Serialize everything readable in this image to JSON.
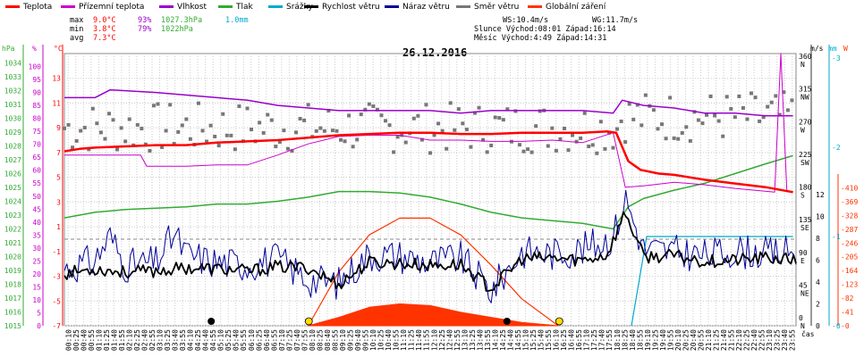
{
  "legend": [
    {
      "name": "Teplota",
      "color": "#ff0000"
    },
    {
      "name": "Přízemní teplota",
      "color": "#cc00cc"
    },
    {
      "name": "Vlhkost",
      "color": "#9900cc"
    },
    {
      "name": "Tlak",
      "color": "#33aa33"
    },
    {
      "name": "Srážky",
      "color": "#00aacc"
    },
    {
      "name": "Rychlost větru",
      "color": "#000000"
    },
    {
      "name": "Náraz větru",
      "color": "#000099"
    },
    {
      "name": "Směr větru",
      "color": "#777777"
    },
    {
      "name": "Globální záření",
      "color": "#ff3300"
    }
  ],
  "stats": {
    "max": {
      "label": "max",
      "temp": "9.0°C",
      "hum": "93%",
      "press": "1027.3hPa",
      "rain": "1.0mm"
    },
    "min": {
      "label": "min",
      "temp": "3.8°C",
      "hum": "79%",
      "press": "1022hPa"
    },
    "avg": {
      "label": "avg",
      "temp": "7.3°C"
    }
  },
  "astro": {
    "ws": "WS:10.4m/s",
    "wg": "WG:11.7m/s",
    "sun": "Slunce Východ:08:01  Západ:16:14",
    "moon": "Měsíc  Východ:4:49   Západ:14:31"
  },
  "chart_data": {
    "type": "line",
    "title": "26.12.2016",
    "xlabel": "čas",
    "x_ticks": [
      "00:10",
      "00:25",
      "00:40",
      "00:55",
      "01:10",
      "01:25",
      "01:40",
      "01:55",
      "02:10",
      "02:25",
      "02:40",
      "02:55",
      "03:10",
      "03:25",
      "03:40",
      "03:55",
      "04:10",
      "04:25",
      "04:40",
      "04:55",
      "05:10",
      "05:25",
      "05:40",
      "05:55",
      "06:10",
      "06:25",
      "06:40",
      "06:55",
      "07:10",
      "07:25",
      "07:40",
      "07:55",
      "08:10",
      "08:25",
      "08:40",
      "08:55",
      "09:10",
      "09:25",
      "09:40",
      "09:55",
      "10:10",
      "10:25",
      "10:40",
      "10:55",
      "11:10",
      "11:25",
      "11:40",
      "11:55",
      "12:10",
      "12:25",
      "12:40",
      "12:55",
      "13:10",
      "13:25",
      "13:40",
      "13:55",
      "14:10",
      "14:25",
      "14:40",
      "14:55",
      "15:10",
      "15:25",
      "15:40",
      "15:55",
      "16:10",
      "16:25",
      "16:40",
      "16:55",
      "17:10",
      "17:25",
      "17:40",
      "17:55",
      "18:10",
      "18:25",
      "18:40",
      "18:55",
      "19:10",
      "19:25",
      "19:40",
      "19:55",
      "20:10",
      "20:25",
      "20:40",
      "20:55",
      "21:10",
      "21:25",
      "21:40",
      "21:55",
      "22:10",
      "22:25",
      "22:40",
      "22:55",
      "23:10",
      "23:25",
      "23:40",
      "23:55"
    ],
    "axes": {
      "pressure": {
        "unit": "hPa",
        "range": [
          1015,
          1035
        ],
        "ticks": [
          1015,
          1016,
          1017,
          1018,
          1019,
          1020,
          1021,
          1022,
          1023,
          1024,
          1025,
          1026,
          1027,
          1028,
          1029,
          1030,
          1031,
          1032,
          1033,
          1034
        ]
      },
      "humidity": {
        "unit": "%",
        "range": [
          0,
          105
        ],
        "ticks": [
          0,
          5,
          10,
          15,
          20,
          25,
          30,
          35,
          40,
          45,
          50,
          55,
          60,
          65,
          70,
          75,
          80,
          85,
          90,
          95,
          100
        ]
      },
      "temperature": {
        "unit": "°C",
        "range": [
          -7,
          15
        ],
        "ticks": [
          -7,
          -5,
          -3,
          -1,
          1,
          3,
          5,
          7,
          9,
          11,
          13
        ]
      },
      "wind_dir": {
        "ticks": [
          {
            "v": 0,
            "l": "0\nN"
          },
          {
            "v": 45,
            "l": "45\nNE"
          },
          {
            "v": 90,
            "l": "90\nE"
          },
          {
            "v": 135,
            "l": "135\nSE"
          },
          {
            "v": 180,
            "l": "180\nS"
          },
          {
            "v": 225,
            "l": "225\nSW"
          },
          {
            "v": 270,
            "l": "270\nW"
          },
          {
            "v": 315,
            "l": "315\nNW"
          },
          {
            "v": 360,
            "l": "360\nN"
          }
        ]
      },
      "wind_speed": {
        "unit": "m/s",
        "range": [
          0,
          12
        ],
        "ticks": [
          0,
          2,
          4,
          6,
          8,
          10,
          12
        ]
      },
      "rain": {
        "unit": "mm",
        "range": [
          0,
          3
        ],
        "ticks": [
          0,
          1,
          2,
          3
        ]
      },
      "radiation": {
        "unit": "W",
        "range": [
          0,
          451
        ],
        "ticks": [
          0,
          41,
          82,
          123,
          164,
          205,
          246,
          287,
          328,
          369,
          410
        ]
      }
    },
    "series": {
      "temperature": [
        [
          0,
          7.1
        ],
        [
          0.5,
          7.3
        ],
        [
          1,
          7.4
        ],
        [
          2,
          7.5
        ],
        [
          3,
          7.6
        ],
        [
          4,
          7.6
        ],
        [
          5,
          7.8
        ],
        [
          6,
          7.9
        ],
        [
          7,
          8.0
        ],
        [
          8,
          8.2
        ],
        [
          9,
          8.4
        ],
        [
          10,
          8.5
        ],
        [
          11,
          8.6
        ],
        [
          12,
          8.6
        ],
        [
          13,
          8.5
        ],
        [
          14,
          8.5
        ],
        [
          15,
          8.6
        ],
        [
          16,
          8.6
        ],
        [
          17,
          8.6
        ],
        [
          17.8,
          8.7
        ],
        [
          18.1,
          8.6
        ],
        [
          18.5,
          6.3
        ],
        [
          18.9,
          5.6
        ],
        [
          19.5,
          5.3
        ],
        [
          20,
          5.2
        ],
        [
          21,
          4.8
        ],
        [
          22,
          4.5
        ],
        [
          23,
          4.2
        ],
        [
          23.9,
          3.8
        ]
      ],
      "ground_temperature": [
        [
          0,
          6.8
        ],
        [
          2.5,
          6.8
        ],
        [
          2.7,
          5.9
        ],
        [
          4,
          5.9
        ],
        [
          5,
          6.0
        ],
        [
          6,
          6.0
        ],
        [
          7,
          6.8
        ],
        [
          8,
          7.7
        ],
        [
          9,
          8.3
        ],
        [
          10,
          8.4
        ],
        [
          11,
          8.4
        ],
        [
          12,
          8.0
        ],
        [
          13,
          8.0
        ],
        [
          14,
          7.9
        ],
        [
          15,
          7.9
        ],
        [
          16,
          8.0
        ],
        [
          17,
          7.8
        ],
        [
          18,
          8.6
        ],
        [
          18.4,
          4.2
        ],
        [
          19,
          4.3
        ],
        [
          20,
          4.6
        ],
        [
          21,
          4.4
        ],
        [
          22,
          4.1
        ],
        [
          23.3,
          3.8
        ],
        [
          23.5,
          15.0
        ],
        [
          23.7,
          3.8
        ]
      ],
      "humidity": [
        [
          0,
          88
        ],
        [
          1,
          88
        ],
        [
          1.5,
          91
        ],
        [
          3,
          90
        ],
        [
          4,
          89
        ],
        [
          5,
          88
        ],
        [
          6,
          87
        ],
        [
          7,
          85
        ],
        [
          8,
          84
        ],
        [
          9,
          83
        ],
        [
          10,
          83
        ],
        [
          11,
          83
        ],
        [
          12,
          83
        ],
        [
          13,
          82
        ],
        [
          14,
          83
        ],
        [
          15,
          83
        ],
        [
          16,
          83
        ],
        [
          17,
          83
        ],
        [
          18,
          82
        ],
        [
          18.3,
          87
        ],
        [
          19,
          85
        ],
        [
          20,
          84
        ],
        [
          21,
          82
        ],
        [
          22,
          82
        ],
        [
          23,
          81
        ],
        [
          23.9,
          81
        ]
      ],
      "pressure": [
        [
          0,
          1022.8
        ],
        [
          1,
          1023.2
        ],
        [
          2,
          1023.4
        ],
        [
          3,
          1023.5
        ],
        [
          4,
          1023.6
        ],
        [
          5,
          1023.8
        ],
        [
          6,
          1023.8
        ],
        [
          7,
          1024.0
        ],
        [
          8,
          1024.3
        ],
        [
          9,
          1024.7
        ],
        [
          10,
          1024.7
        ],
        [
          11,
          1024.6
        ],
        [
          12,
          1024.3
        ],
        [
          13,
          1023.8
        ],
        [
          14,
          1023.2
        ],
        [
          15,
          1022.8
        ],
        [
          16,
          1022.6
        ],
        [
          17,
          1022.4
        ],
        [
          18,
          1022.0
        ],
        [
          18.5,
          1023.6
        ],
        [
          19,
          1024.2
        ],
        [
          20,
          1024.8
        ],
        [
          21,
          1025.3
        ],
        [
          22,
          1026.0
        ],
        [
          23,
          1026.7
        ],
        [
          23.9,
          1027.3
        ]
      ],
      "rain": [
        [
          18.6,
          0
        ],
        [
          19.1,
          1.0
        ],
        [
          23.9,
          1.0
        ]
      ],
      "wind_speed": [
        [
          0,
          4.8
        ],
        [
          1,
          5.2
        ],
        [
          2,
          4.9
        ],
        [
          3,
          5.0
        ],
        [
          4,
          5.3
        ],
        [
          5,
          5.2
        ],
        [
          6,
          5.0
        ],
        [
          7,
          5.4
        ],
        [
          8,
          5.3
        ],
        [
          9,
          3.8
        ],
        [
          10,
          5.8
        ],
        [
          11,
          5.7
        ],
        [
          12,
          5.5
        ],
        [
          13,
          5.6
        ],
        [
          14,
          3.4
        ],
        [
          15,
          6.1
        ],
        [
          16,
          6.2
        ],
        [
          17,
          6.0
        ],
        [
          17.8,
          6.5
        ],
        [
          18.4,
          10.4
        ],
        [
          19,
          6.3
        ],
        [
          20,
          6.4
        ],
        [
          21,
          5.9
        ],
        [
          22,
          6.0
        ],
        [
          23,
          6.2
        ],
        [
          23.9,
          6.0
        ]
      ],
      "wind_gust": [
        [
          0,
          5.2
        ],
        [
          1,
          6.0
        ],
        [
          1.5,
          8.2
        ],
        [
          2,
          5.5
        ],
        [
          3,
          5.8
        ],
        [
          3.6,
          8.4
        ],
        [
          4,
          6.5
        ],
        [
          5,
          5.8
        ],
        [
          6,
          5.6
        ],
        [
          7,
          6.1
        ],
        [
          8,
          4.2
        ],
        [
          9,
          3.9
        ],
        [
          10,
          6.5
        ],
        [
          11,
          6.4
        ],
        [
          12,
          5.8
        ],
        [
          13,
          6.2
        ],
        [
          14,
          3.2
        ],
        [
          15,
          6.8
        ],
        [
          16,
          6.6
        ],
        [
          17,
          7.0
        ],
        [
          18,
          8.1
        ],
        [
          18.4,
          11.7
        ],
        [
          19,
          7.0
        ],
        [
          20,
          6.8
        ],
        [
          21,
          6.4
        ],
        [
          22,
          6.9
        ],
        [
          23,
          6.6
        ],
        [
          23.9,
          6.8
        ]
      ],
      "radiation": [
        [
          8.0,
          0
        ],
        [
          9,
          25
        ],
        [
          10,
          55
        ],
        [
          11,
          65
        ],
        [
          12,
          60
        ],
        [
          13,
          40
        ],
        [
          14,
          25
        ],
        [
          15,
          10
        ],
        [
          16.2,
          0
        ]
      ],
      "radiation_theoretical": [
        [
          8.0,
          0
        ],
        [
          9,
          160
        ],
        [
          10,
          270
        ],
        [
          11,
          320
        ],
        [
          12,
          320
        ],
        [
          13,
          270
        ],
        [
          14,
          180
        ],
        [
          15,
          80
        ],
        [
          16.2,
          0
        ]
      ],
      "wind_direction_samples": 180
    },
    "markers": [
      {
        "type": "moon",
        "time": "4:49"
      },
      {
        "type": "sun",
        "time": "08:01"
      },
      {
        "type": "moon",
        "time": "14:31"
      },
      {
        "type": "sun",
        "time": "16:14"
      }
    ],
    "grid": true
  }
}
